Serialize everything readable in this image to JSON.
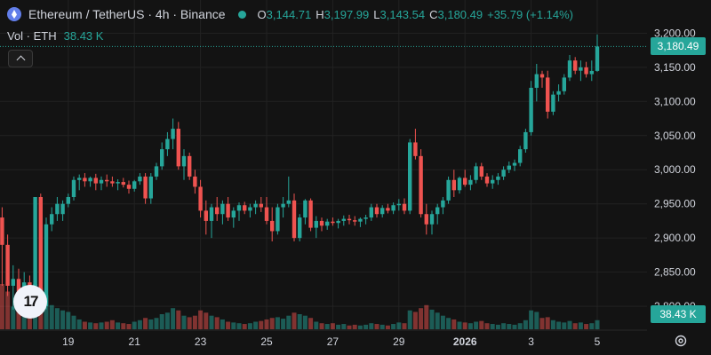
{
  "header": {
    "symbol": "Ethereum / TetherUS · 4h · Binance",
    "open_label": "O",
    "open": "3,144.71",
    "high_label": "H",
    "high": "3,197.99",
    "low_label": "L",
    "low": "3,143.54",
    "close_label": "C",
    "close": "3,180.49",
    "change": "+35.79 (+1.14%)"
  },
  "volume_legend": {
    "label": "Vol · ETH",
    "value": "38.43 K"
  },
  "last_price_label": "3,180.49",
  "last_volume_label": "38.43 K",
  "colors": {
    "up": "#26a69a",
    "down": "#ef5350",
    "background": "#131313",
    "grid": "#222222",
    "text": "#d1d4dc"
  },
  "icons": {
    "logo": "ethereum-logo-icon",
    "status": "market-open-dot-icon",
    "collapse": "chevron-up-icon",
    "settings": "gear-icon",
    "tradingview": "tradingview-logo-icon"
  },
  "tv_logo_text": "17",
  "chart_data": {
    "type": "candlestick",
    "symbol": "ETH/USDT",
    "interval": "4h",
    "exchange": "Binance",
    "y_ticks": [
      "3,200.00",
      "3,150.00",
      "3,100.00",
      "3,050.00",
      "3,000.00",
      "2,950.00",
      "2,900.00",
      "2,850.00",
      "2,800.00"
    ],
    "y_tick_values": [
      3200,
      3150,
      3100,
      3050,
      3000,
      2950,
      2900,
      2850,
      2800
    ],
    "ylim": [
      2765,
      3220
    ],
    "x_ticks": [
      "19",
      "21",
      "23",
      "25",
      "27",
      "29",
      "2026",
      "3",
      "5"
    ],
    "x_tick_bars": [
      12,
      24,
      36,
      48,
      60,
      72,
      84,
      96,
      108
    ],
    "bar_count": 109,
    "last_price": 3180.49,
    "grid": true,
    "bars": [
      [
        2930,
        2945,
        2830,
        2890,
        6
      ],
      [
        2890,
        2905,
        2815,
        2830,
        5
      ],
      [
        2830,
        2860,
        2795,
        2840,
        3
      ],
      [
        2840,
        2855,
        2800,
        2820,
        2.5
      ],
      [
        2820,
        2850,
        2810,
        2835,
        2
      ],
      [
        2835,
        2845,
        2820,
        2830,
        1.8
      ],
      [
        2830,
        2960,
        2825,
        2960,
        6
      ],
      [
        2960,
        2965,
        2790,
        2800,
        5.5
      ],
      [
        2800,
        2930,
        2795,
        2920,
        4.5
      ],
      [
        2920,
        2945,
        2910,
        2935,
        3.2
      ],
      [
        2935,
        2960,
        2925,
        2950,
        2.8
      ],
      [
        2935,
        2955,
        2925,
        2950,
        2.5
      ],
      [
        2950,
        2965,
        2945,
        2960,
        2.3
      ],
      [
        2960,
        2990,
        2955,
        2985,
        1.8
      ],
      [
        2985,
        2993,
        2970,
        2988,
        1.3
      ],
      [
        2988,
        2995,
        2975,
        2983,
        1
      ],
      [
        2983,
        2990,
        2975,
        2988,
        0.9
      ],
      [
        2988,
        2994,
        2970,
        2980,
        0.8
      ],
      [
        2980,
        2990,
        2970,
        2985,
        0.9
      ],
      [
        2985,
        2993,
        2975,
        2983,
        1
      ],
      [
        2983,
        2990,
        2975,
        2980,
        1.2
      ],
      [
        2980,
        2986,
        2970,
        2982,
        0.9
      ],
      [
        2982,
        2988,
        2974,
        2978,
        0.8
      ],
      [
        2978,
        2984,
        2965,
        2972,
        0.7
      ],
      [
        2972,
        2985,
        2968,
        2983,
        1
      ],
      [
        2983,
        2995,
        2978,
        2990,
        1.2
      ],
      [
        2990,
        2995,
        2950,
        2958,
        1.5
      ],
      [
        2958,
        2995,
        2950,
        2990,
        1.3
      ],
      [
        2990,
        3010,
        2985,
        3005,
        1.5
      ],
      [
        3005,
        3040,
        3000,
        3030,
        2
      ],
      [
        3030,
        3055,
        3020,
        3045,
        2.2
      ],
      [
        3045,
        3075,
        3030,
        3060,
        2.8
      ],
      [
        3060,
        3070,
        3000,
        3005,
        2.5
      ],
      [
        3005,
        3030,
        2985,
        3020,
        1.8
      ],
      [
        3020,
        3025,
        2985,
        2990,
        1.6
      ],
      [
        2990,
        3000,
        2965,
        2975,
        1.8
      ],
      [
        2975,
        2985,
        2930,
        2940,
        2.5
      ],
      [
        2940,
        2955,
        2905,
        2925,
        2.2
      ],
      [
        2925,
        2950,
        2900,
        2945,
        1.8
      ],
      [
        2945,
        2960,
        2925,
        2935,
        1.6
      ],
      [
        2935,
        2955,
        2920,
        2950,
        1.3
      ],
      [
        2950,
        2960,
        2925,
        2930,
        1
      ],
      [
        2930,
        2945,
        2915,
        2940,
        0.9
      ],
      [
        2940,
        2952,
        2925,
        2948,
        0.8
      ],
      [
        2948,
        2953,
        2935,
        2940,
        0.7
      ],
      [
        2940,
        2950,
        2930,
        2945,
        0.8
      ],
      [
        2945,
        2955,
        2935,
        2950,
        1
      ],
      [
        2950,
        2960,
        2938,
        2945,
        1.1
      ],
      [
        2945,
        2960,
        2920,
        2925,
        1.3
      ],
      [
        2925,
        2945,
        2895,
        2910,
        1.5
      ],
      [
        2910,
        2950,
        2905,
        2945,
        1.6
      ],
      [
        2945,
        2960,
        2930,
        2950,
        1.4
      ],
      [
        2950,
        2990,
        2945,
        2955,
        1.8
      ],
      [
        2955,
        2965,
        2895,
        2900,
        2.2
      ],
      [
        2900,
        2935,
        2895,
        2930,
        2
      ],
      [
        2930,
        2957,
        2920,
        2955,
        1.8
      ],
      [
        2955,
        2958,
        2910,
        2915,
        1.5
      ],
      [
        2915,
        2932,
        2900,
        2925,
        1
      ],
      [
        2925,
        2930,
        2910,
        2918,
        0.8
      ],
      [
        2918,
        2928,
        2912,
        2924,
        0.7
      ],
      [
        2924,
        2930,
        2918,
        2922,
        0.8
      ],
      [
        2922,
        2928,
        2914,
        2925,
        0.6
      ],
      [
        2925,
        2933,
        2918,
        2928,
        0.7
      ],
      [
        2928,
        2934,
        2920,
        2926,
        0.5
      ],
      [
        2926,
        2932,
        2918,
        2924,
        0.6
      ],
      [
        2924,
        2930,
        2916,
        2928,
        0.5
      ],
      [
        2928,
        2934,
        2920,
        2930,
        0.6
      ],
      [
        2930,
        2950,
        2925,
        2945,
        0.8
      ],
      [
        2945,
        2950,
        2930,
        2935,
        0.7
      ],
      [
        2935,
        2948,
        2930,
        2944,
        0.6
      ],
      [
        2944,
        2950,
        2936,
        2940,
        0.5
      ],
      [
        2940,
        2952,
        2935,
        2948,
        0.7
      ],
      [
        2948,
        2957,
        2940,
        2950,
        0.9
      ],
      [
        2950,
        2958,
        2935,
        2940,
        0.8
      ],
      [
        2940,
        3045,
        2935,
        3040,
        2.5
      ],
      [
        3040,
        3060,
        3015,
        3020,
        2.3
      ],
      [
        3020,
        3030,
        2930,
        2935,
        2.8
      ],
      [
        2935,
        2950,
        2905,
        2920,
        3.2
      ],
      [
        2920,
        2940,
        2905,
        2935,
        2.6
      ],
      [
        2935,
        2950,
        2920,
        2945,
        2.2
      ],
      [
        2945,
        2960,
        2935,
        2955,
        1.8
      ],
      [
        2955,
        2990,
        2950,
        2985,
        1.5
      ],
      [
        2985,
        3000,
        2960,
        2970,
        1.3
      ],
      [
        2970,
        2990,
        2965,
        2988,
        1
      ],
      [
        2988,
        3000,
        2975,
        2978,
        0.9
      ],
      [
        2978,
        2992,
        2970,
        2985,
        0.8
      ],
      [
        2985,
        3010,
        2980,
        3005,
        1
      ],
      [
        3005,
        3010,
        2985,
        2990,
        1.1
      ],
      [
        2990,
        2995,
        2975,
        2980,
        0.8
      ],
      [
        2980,
        2992,
        2972,
        2985,
        0.7
      ],
      [
        2985,
        2995,
        2978,
        2990,
        0.6
      ],
      [
        2990,
        3005,
        2985,
        3000,
        0.8
      ],
      [
        3000,
        3012,
        2995,
        3006,
        0.7
      ],
      [
        3006,
        3015,
        2998,
        3010,
        0.6
      ],
      [
        3010,
        3035,
        3005,
        3030,
        0.8
      ],
      [
        3030,
        3060,
        3025,
        3055,
        1.2
      ],
      [
        3055,
        3130,
        3050,
        3120,
        2.5
      ],
      [
        3120,
        3155,
        3100,
        3140,
        2.3
      ],
      [
        3140,
        3145,
        3120,
        3135,
        1.5
      ],
      [
        3135,
        3145,
        3075,
        3085,
        1.6
      ],
      [
        3085,
        3115,
        3080,
        3110,
        1.2
      ],
      [
        3110,
        3125,
        3100,
        3115,
        1
      ],
      [
        3115,
        3140,
        3110,
        3135,
        0.9
      ],
      [
        3135,
        3168,
        3130,
        3160,
        1.1
      ],
      [
        3160,
        3165,
        3140,
        3145,
        0.8
      ],
      [
        3145,
        3160,
        3130,
        3150,
        0.9
      ],
      [
        3150,
        3158,
        3135,
        3140,
        0.7
      ],
      [
        3140,
        3160,
        3130,
        3144.71,
        0.8
      ],
      [
        3144.71,
        3197.99,
        3143.54,
        3180.49,
        1.2
      ]
    ]
  }
}
